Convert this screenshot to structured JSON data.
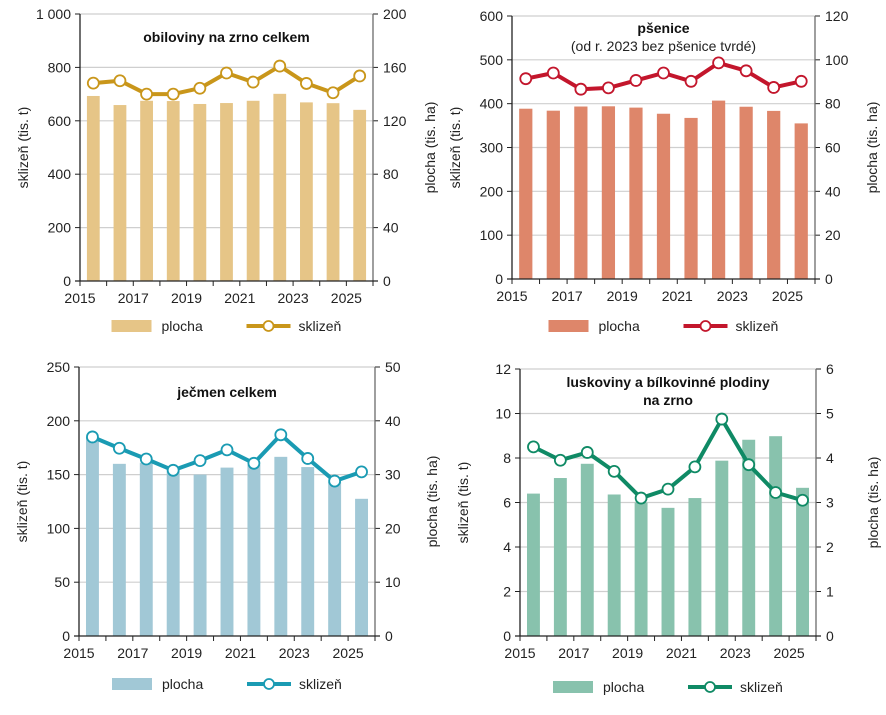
{
  "chart_data": [
    {
      "type": "bar",
      "title": "obiloviny na zrno celkem",
      "subtitle": "",
      "categories": [
        "2015",
        "2016",
        "2017",
        "2018",
        "2019",
        "2020",
        "2021",
        "2022",
        "2023",
        "2024",
        "2025"
      ],
      "x_tick_labels": [
        "2015",
        "2017",
        "2019",
        "2021",
        "2023",
        "2025"
      ],
      "ylabel": "sklizeň (tis. t)",
      "y2label": "plocha (tis. ha)",
      "ylim": [
        0,
        1000
      ],
      "y2lim": [
        0,
        200
      ],
      "y_ticks": [
        0,
        200,
        400,
        600,
        800,
        1000
      ],
      "y_tick_labels": [
        "0",
        "200",
        "400",
        "600",
        "800",
        "1 000"
      ],
      "y2_ticks": [
        0,
        40,
        80,
        120,
        160,
        200
      ],
      "y2_tick_labels": [
        "0",
        "40",
        "80",
        "120",
        "160",
        "200"
      ],
      "grid": true,
      "legend_position": "bottom",
      "bar_color": "#e6c587",
      "line_color": "#c9961a",
      "series": [
        {
          "name": "plocha",
          "type": "bar",
          "axis": "right",
          "values": [
            138.6,
            131.8,
            135.0,
            134.8,
            132.6,
            133.3,
            135.0,
            140.2,
            133.8,
            133.2,
            128.2
          ]
        },
        {
          "name": "sklizeň",
          "type": "line",
          "axis": "left",
          "values": [
            741,
            750,
            700,
            700,
            722,
            779,
            745,
            805,
            740,
            705,
            768
          ]
        }
      ]
    },
    {
      "type": "bar",
      "title": "pšenice",
      "subtitle": "(od r. 2023 bez pšenice tvrdé)",
      "categories": [
        "2015",
        "2016",
        "2017",
        "2018",
        "2019",
        "2020",
        "2021",
        "2022",
        "2023",
        "2024",
        "2025"
      ],
      "x_tick_labels": [
        "2015",
        "2017",
        "2019",
        "2021",
        "2023",
        "2025"
      ],
      "ylabel": "sklizeň (tis. t)",
      "y2label": "plocha (tis. ha)",
      "ylim": [
        0,
        600
      ],
      "y2lim": [
        0,
        120
      ],
      "y_ticks": [
        0,
        100,
        200,
        300,
        400,
        500,
        600
      ],
      "y_tick_labels": [
        "0",
        "100",
        "200",
        "300",
        "400",
        "500",
        "600"
      ],
      "y2_ticks": [
        0,
        20,
        40,
        60,
        80,
        100,
        120
      ],
      "y2_tick_labels": [
        "0",
        "20",
        "40",
        "60",
        "80",
        "100",
        "120"
      ],
      "grid": true,
      "legend_position": "bottom",
      "bar_color": "#de866a",
      "line_color": "#c3162c",
      "series": [
        {
          "name": "plocha",
          "type": "bar",
          "axis": "right",
          "values": [
            77.7,
            76.8,
            78.7,
            78.8,
            78.2,
            75.4,
            73.5,
            81.4,
            78.6,
            76.7,
            71.0
          ]
        },
        {
          "name": "sklizeň",
          "type": "line",
          "axis": "left",
          "values": [
            457,
            470,
            433,
            436,
            453,
            470,
            451,
            493,
            475,
            437,
            451
          ]
        }
      ]
    },
    {
      "type": "bar",
      "title": "ječmen celkem",
      "subtitle": "",
      "categories": [
        "2015",
        "2016",
        "2017",
        "2018",
        "2019",
        "2020",
        "2021",
        "2022",
        "2023",
        "2024",
        "2025"
      ],
      "x_tick_labels": [
        "2015",
        "2017",
        "2019",
        "2021",
        "2023",
        "2025"
      ],
      "ylabel": "sklizeň (tis. t)",
      "y2label": "plocha (tis. ha)",
      "ylim": [
        0,
        250
      ],
      "y2lim": [
        0,
        50
      ],
      "y_ticks": [
        0,
        50,
        100,
        150,
        200,
        250
      ],
      "y_tick_labels": [
        "0",
        "50",
        "100",
        "150",
        "200",
        "250"
      ],
      "y2_ticks": [
        0,
        10,
        20,
        30,
        40,
        50
      ],
      "y2_tick_labels": [
        "0",
        "10",
        "20",
        "30",
        "40",
        "50"
      ],
      "grid": true,
      "legend_position": "bottom",
      "bar_color": "#a1c8d6",
      "line_color": "#1a9bb3",
      "series": [
        {
          "name": "plocha",
          "type": "bar",
          "axis": "right",
          "values": [
            37.0,
            32.0,
            32.2,
            30.8,
            30.0,
            31.3,
            31.8,
            33.3,
            31.4,
            28.6,
            25.5
          ]
        },
        {
          "name": "sklizeň",
          "type": "line",
          "axis": "left",
          "values": [
            185,
            174.5,
            164.5,
            154,
            163,
            173,
            160.5,
            187,
            165,
            144,
            152.5
          ]
        }
      ]
    },
    {
      "type": "bar",
      "title": "luskoviny a bílkovinné plodiny",
      "subtitle": "na zrno",
      "subtitle_bold": true,
      "categories": [
        "2015",
        "2016",
        "2017",
        "2018",
        "2019",
        "2020",
        "2021",
        "2022",
        "2023",
        "2024",
        "2025"
      ],
      "x_tick_labels": [
        "2015",
        "2017",
        "2019",
        "2021",
        "2023",
        "2025"
      ],
      "ylabel": "sklizeň (tis. t)",
      "y2label": "plocha (tis. ha)",
      "ylim": [
        0,
        12
      ],
      "y2lim": [
        0,
        6
      ],
      "y_ticks": [
        0,
        2,
        4,
        6,
        8,
        10,
        12
      ],
      "y_tick_labels": [
        "0",
        "2",
        "4",
        "6",
        "8",
        "10",
        "12"
      ],
      "y2_ticks": [
        0,
        1,
        2,
        3,
        4,
        5,
        6
      ],
      "y2_tick_labels": [
        "0",
        "1",
        "2",
        "3",
        "4",
        "5",
        "6"
      ],
      "grid": true,
      "legend_position": "bottom",
      "bar_color": "#88c2ad",
      "line_color": "#0f8a65",
      "series": [
        {
          "name": "plocha",
          "type": "bar",
          "axis": "right",
          "values": [
            3.2,
            3.55,
            3.87,
            3.18,
            3.0,
            2.88,
            3.1,
            3.94,
            4.41,
            4.49,
            3.33
          ]
        },
        {
          "name": "sklizeň",
          "type": "line",
          "axis": "left",
          "values": [
            8.5,
            7.9,
            8.25,
            7.4,
            6.2,
            6.6,
            7.6,
            9.75,
            7.7,
            6.45,
            6.1
          ]
        }
      ]
    }
  ]
}
